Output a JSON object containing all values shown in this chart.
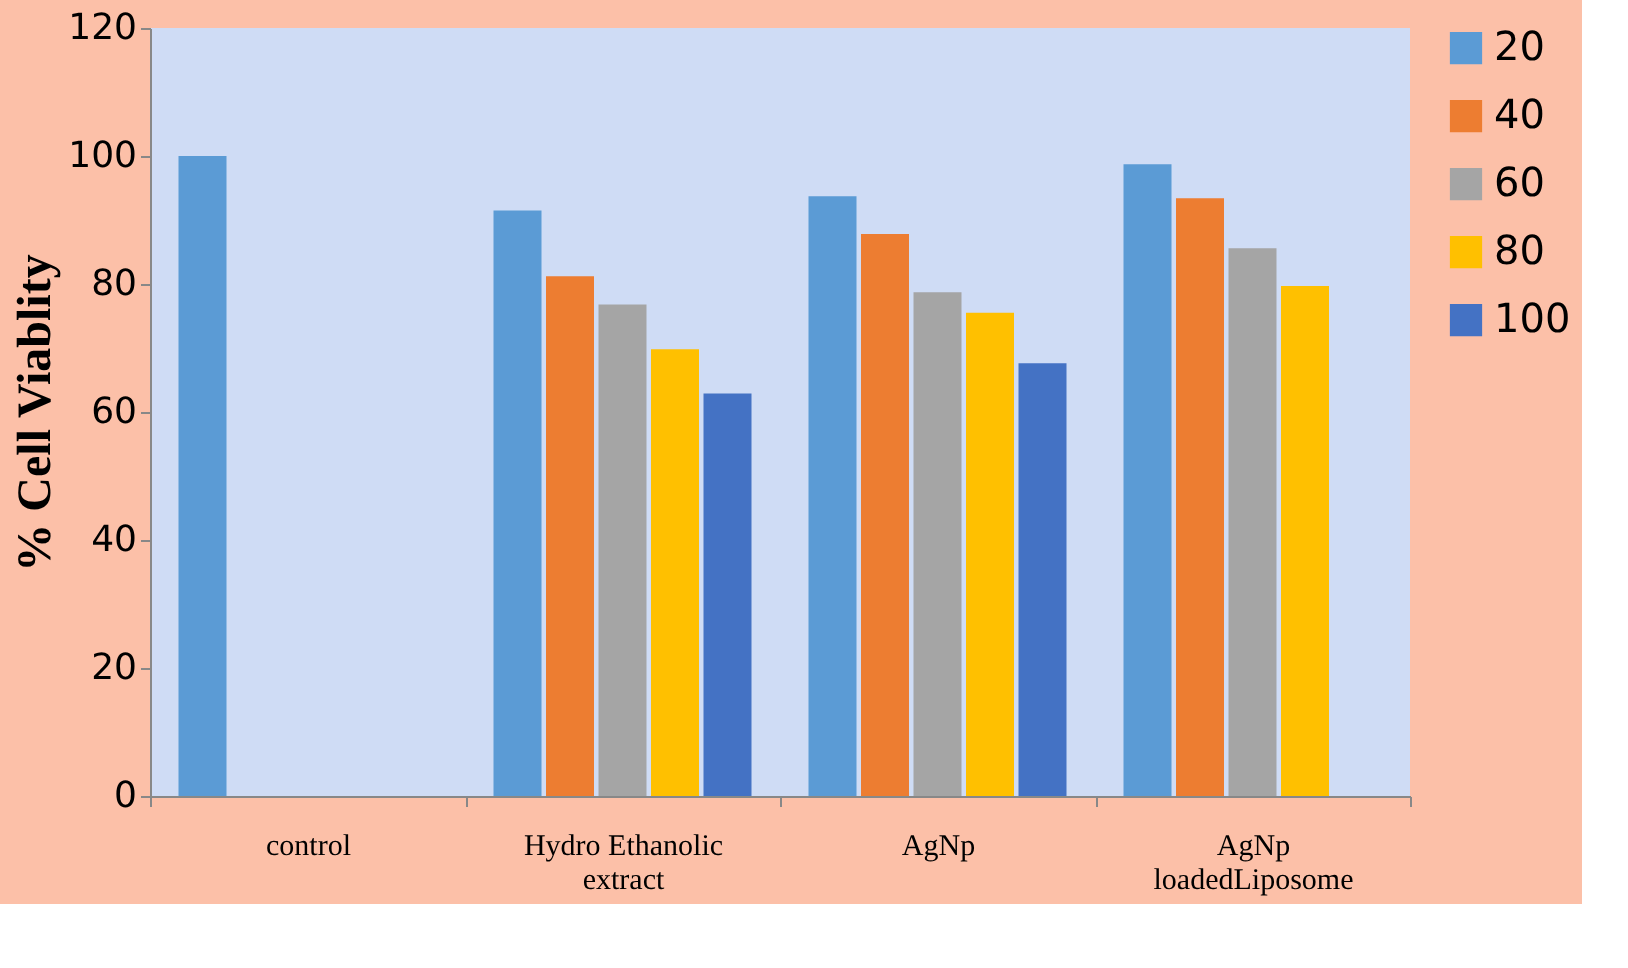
{
  "chart_data": {
    "type": "bar",
    "ylabel": "% Cell Viablity",
    "categories": [
      "control",
      "Hydro Ethanolic\nextract",
      "AgNp",
      "AgNp\nloadedLiposome"
    ],
    "series": [
      {
        "name": "20",
        "color": "#5b9bd5",
        "values": [
          100,
          91.5,
          93.7,
          98.7
        ]
      },
      {
        "name": "40",
        "color": "#ed7d31",
        "values": [
          null,
          81.2,
          87.8,
          93.4
        ]
      },
      {
        "name": "60",
        "color": "#a5a5a5",
        "values": [
          null,
          76.8,
          78.7,
          85.6
        ]
      },
      {
        "name": "80",
        "color": "#ffc000",
        "values": [
          null,
          69.8,
          75.5,
          79.7
        ]
      },
      {
        "name": "100",
        "color": "#4472c4",
        "values": [
          null,
          62.9,
          67.6,
          null
        ]
      }
    ],
    "ylim": [
      0,
      120
    ],
    "yticks": [
      0,
      20,
      40,
      60,
      80,
      100,
      120
    ],
    "grid": false,
    "legend": "right"
  }
}
